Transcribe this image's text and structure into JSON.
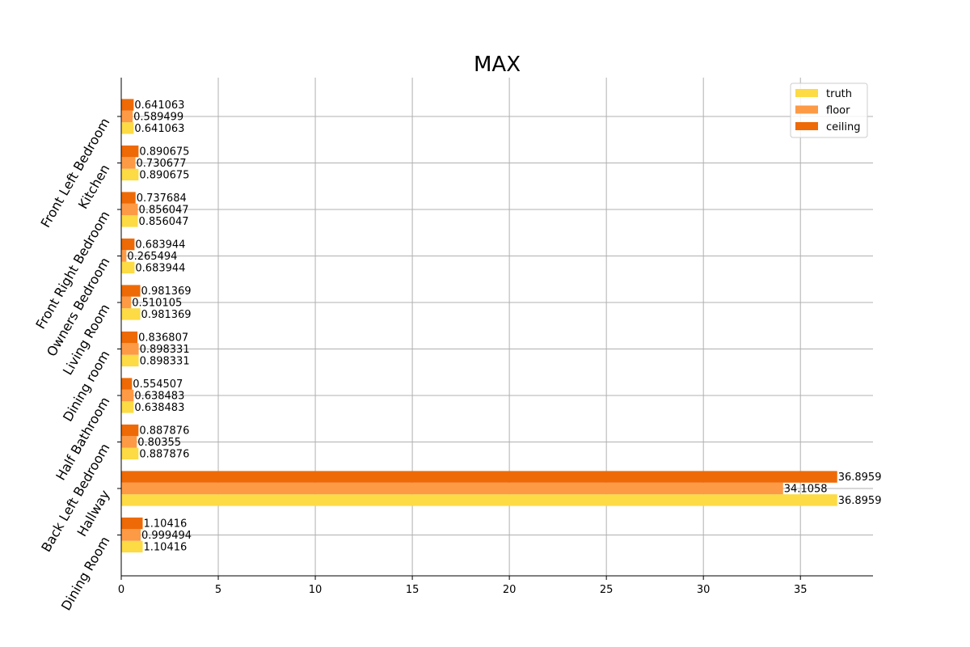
{
  "chart_data": {
    "type": "bar",
    "orientation": "horizontal",
    "title": "MAX",
    "xlabel": "",
    "ylabel": "",
    "xlim": [
      0,
      38.74
    ],
    "x_ticks": [
      0,
      5,
      10,
      15,
      20,
      25,
      30,
      35
    ],
    "grid": true,
    "legend_position": "top-right",
    "categories": [
      "Dining Room",
      "Hallway",
      "Back Left Bedroom",
      "Half Bathroom",
      "Dining room",
      "Living Room",
      "Owners Bedroom",
      "Front Right Bedroom",
      "Kitchen",
      "Front Left Bedroom"
    ],
    "series": [
      {
        "name": "truth",
        "color": "#fcdb44",
        "values": [
          1.10416,
          36.8959,
          0.887876,
          0.638483,
          0.898331,
          0.981369,
          0.683944,
          0.856047,
          0.890675,
          0.641063
        ],
        "labels": [
          "1.10416",
          "36.8959",
          "0.887876",
          "0.638483",
          "0.898331",
          "0.981369",
          "0.683944",
          "0.856047",
          "0.890675",
          "0.641063"
        ]
      },
      {
        "name": "floor",
        "color": "#fd9a46",
        "values": [
          0.999494,
          34.1058,
          0.80355,
          0.638483,
          0.898331,
          0.510105,
          0.265494,
          0.856047,
          0.730677,
          0.589499
        ],
        "labels": [
          "0.999494",
          "34.1058",
          "0.80355",
          "0.638483",
          "0.898331",
          "0.510105",
          "0.265494",
          "0.856047",
          "0.730677",
          "0.589499"
        ]
      },
      {
        "name": "ceiling",
        "color": "#ee6a06",
        "values": [
          1.10416,
          36.8959,
          0.887876,
          0.554507,
          0.836807,
          0.981369,
          0.683944,
          0.737684,
          0.890675,
          0.641063
        ],
        "labels": [
          "1.10416",
          "36.8959",
          "0.887876",
          "0.554507",
          "0.836807",
          "0.981369",
          "0.683944",
          "0.737684",
          "0.890675",
          "0.641063"
        ]
      }
    ]
  }
}
